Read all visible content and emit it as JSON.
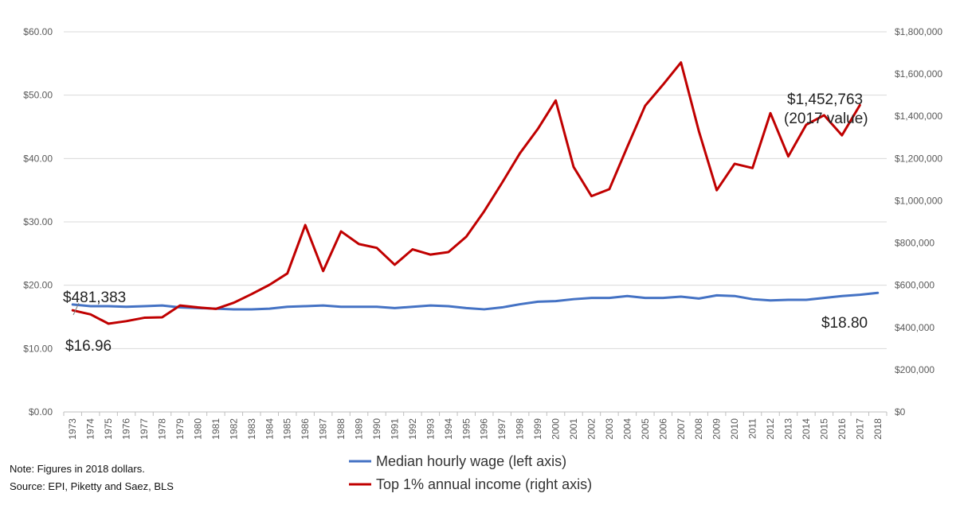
{
  "chart_data": {
    "type": "line",
    "x": [
      "1973",
      "1974",
      "1975",
      "1976",
      "1977",
      "1978",
      "1979",
      "1980",
      "1981",
      "1982",
      "1983",
      "1984",
      "1985",
      "1986",
      "1987",
      "1988",
      "1989",
      "1990",
      "1991",
      "1992",
      "1993",
      "1994",
      "1995",
      "1996",
      "1997",
      "1998",
      "1999",
      "2000",
      "2001",
      "2002",
      "2003",
      "2004",
      "2005",
      "2006",
      "2007",
      "2008",
      "2009",
      "2010",
      "2011",
      "2012",
      "2013",
      "2014",
      "2015",
      "2016",
      "2017",
      "2018"
    ],
    "series": [
      {
        "name": "Median hourly wage (left axis)",
        "axis": "left",
        "color": "#4472C4",
        "values": [
          16.96,
          16.7,
          16.7,
          16.6,
          16.7,
          16.8,
          16.5,
          16.4,
          16.3,
          16.2,
          16.2,
          16.3,
          16.6,
          16.7,
          16.8,
          16.6,
          16.6,
          16.6,
          16.4,
          16.6,
          16.8,
          16.7,
          16.4,
          16.2,
          16.5,
          17.0,
          17.4,
          17.5,
          17.8,
          18.0,
          18.0,
          18.3,
          18.0,
          18.0,
          18.2,
          17.9,
          18.4,
          18.3,
          17.8,
          17.6,
          17.7,
          17.7,
          18.0,
          18.3,
          18.5,
          18.8
        ]
      },
      {
        "name": "Top 1% annual income (right axis)",
        "axis": "right",
        "color": "#C00000",
        "values": [
          481383,
          462000,
          418000,
          430000,
          446000,
          448000,
          504000,
          495000,
          488000,
          517000,
          558000,
          602000,
          656000,
          885000,
          667000,
          855000,
          795000,
          777000,
          697000,
          770000,
          745000,
          757000,
          830000,
          950000,
          1085000,
          1225000,
          1340000,
          1475000,
          1160000,
          1022000,
          1055000,
          1255000,
          1450000,
          1550000,
          1655000,
          1330000,
          1050000,
          1175000,
          1155000,
          1415000,
          1210000,
          1360000,
          1405000,
          1310000,
          1452763,
          null
        ]
      }
    ],
    "left_axis": {
      "ylim": [
        0,
        60
      ],
      "tick_values": [
        0,
        10,
        20,
        30,
        40,
        50,
        60
      ],
      "tick_labels": [
        "$0.00",
        "$10.00",
        "$20.00",
        "$30.00",
        "$40.00",
        "$50.00",
        "$60.00"
      ]
    },
    "right_axis": {
      "ylim": [
        0,
        1800000
      ],
      "tick_values": [
        0,
        200000,
        400000,
        600000,
        800000,
        1000000,
        1200000,
        1400000,
        1600000,
        1800000
      ],
      "tick_labels": [
        "$0",
        "$200,000",
        "$400,000",
        "$600,000",
        "$800,000",
        "$1,000,000",
        "$1,200,000",
        "$1,400,000",
        "$1,600,000",
        "$1,800,000"
      ]
    },
    "grid": true,
    "legend_position": "bottom-center",
    "annotations": {
      "income_start": "$481,383",
      "wage_start": "$16.96",
      "wage_end": "$18.80",
      "income_end_line1": "$1,452,763",
      "income_end_line2": "(2017 value)"
    }
  },
  "note": {
    "line1": "Note: Figures in 2018 dollars.",
    "line2": "Source: EPI, Piketty and Saez, BLS"
  }
}
